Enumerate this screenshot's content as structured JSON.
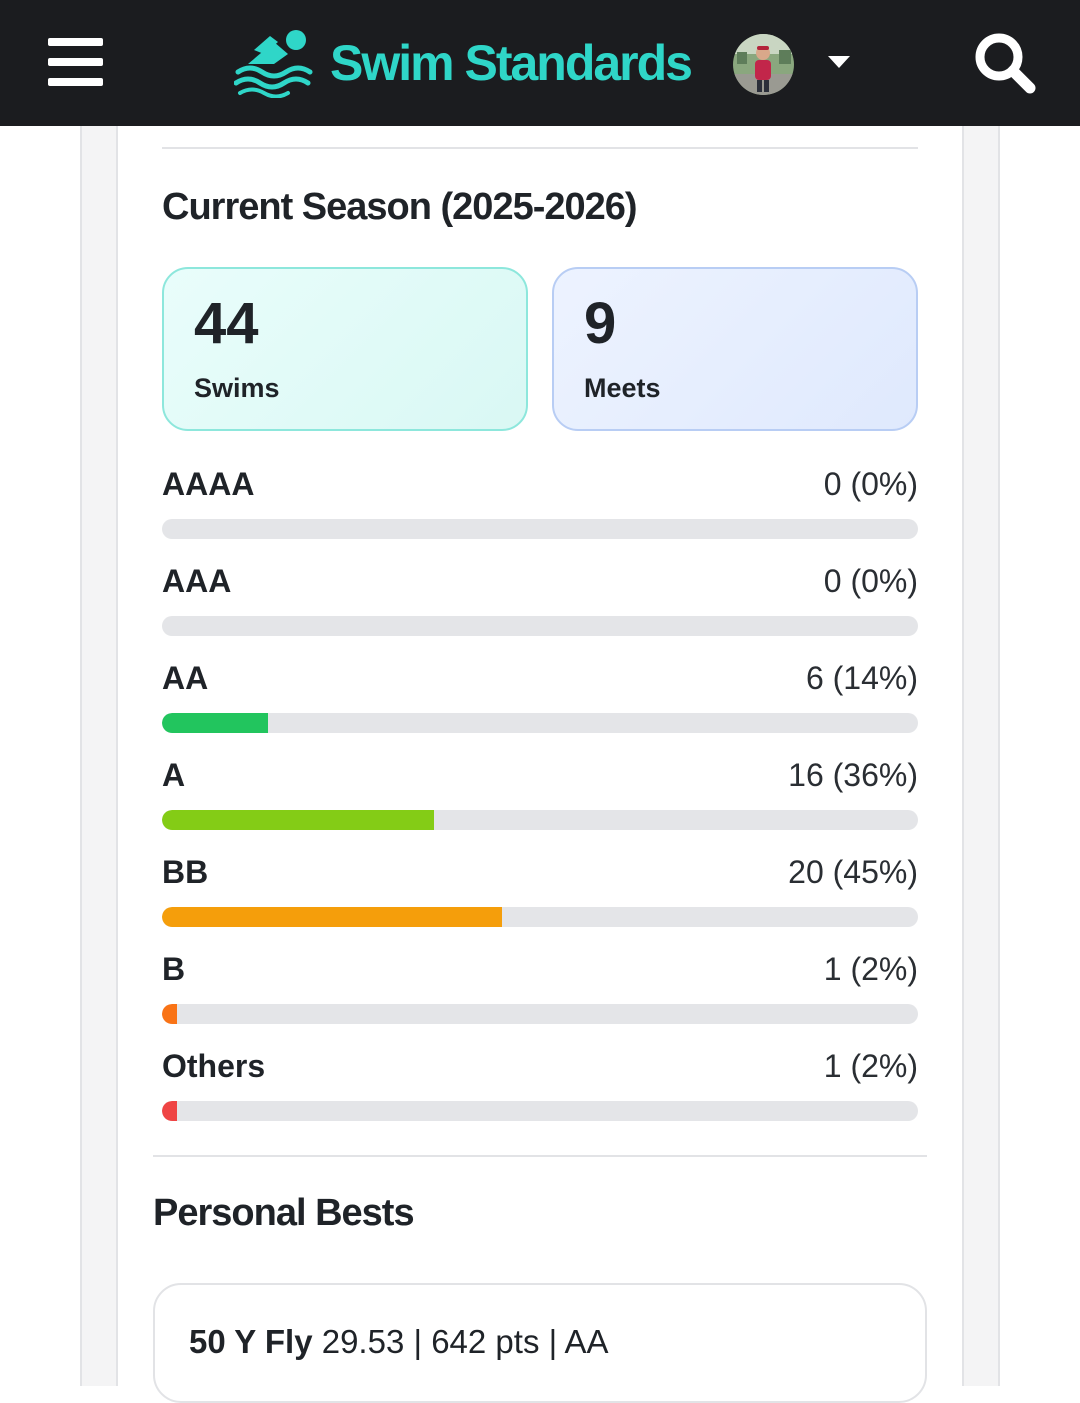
{
  "header": {
    "brand_name": "Swim Standards",
    "brand_color": "#2fd6c8",
    "background": "#1b1c1f",
    "icons": {
      "menu": "hamburger-icon",
      "logo": "swimmer-icon",
      "dropdown": "caret-down-icon",
      "search": "search-icon"
    }
  },
  "season": {
    "title": "Current Season (2025-2026)",
    "stats": [
      {
        "value": "44",
        "label": "Swims"
      },
      {
        "value": "9",
        "label": "Meets"
      }
    ],
    "breakdown": [
      {
        "label": "AAAA",
        "display": "0 (0%)",
        "percent": 0,
        "color": "#9ca3af"
      },
      {
        "label": "AAA",
        "display": "0 (0%)",
        "percent": 0,
        "color": "#9ca3af"
      },
      {
        "label": "AA",
        "display": "6 (14%)",
        "percent": 14,
        "color": "#22c55e"
      },
      {
        "label": "A",
        "display": "16 (36%)",
        "percent": 36,
        "color": "#84cc16"
      },
      {
        "label": "BB",
        "display": "20 (45%)",
        "percent": 45,
        "color": "#f59e0b"
      },
      {
        "label": "B",
        "display": "1 (2%)",
        "percent": 2,
        "color": "#f97316"
      },
      {
        "label": "Others",
        "display": "1 (2%)",
        "percent": 2,
        "color": "#ef4444"
      }
    ]
  },
  "personal_bests": {
    "title": "Personal Bests",
    "items": [
      {
        "event": "50 Y Fly",
        "details": "29.53 |   642 pts | AA"
      }
    ]
  }
}
